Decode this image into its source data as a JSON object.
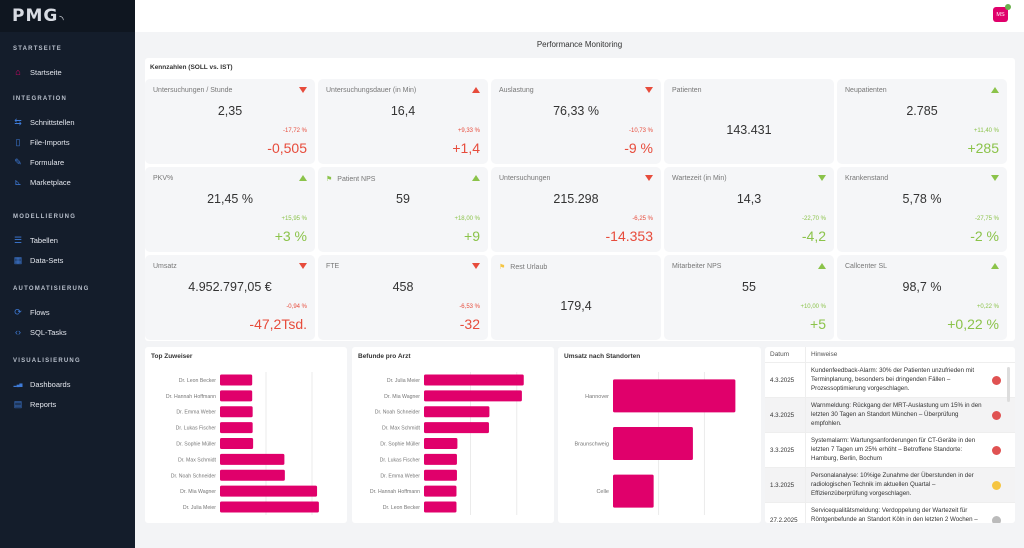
{
  "app": {
    "logo": "PMG"
  },
  "sidebar": {
    "sections": [
      {
        "heading": "STARTSEITE",
        "items": [
          {
            "label": "Startseite",
            "icon": "home-icon",
            "glyph": "⌂",
            "active": true
          }
        ]
      },
      {
        "heading": "INTEGRATION",
        "items": [
          {
            "label": "Schnittstellen",
            "icon": "interface-icon",
            "glyph": "⇆"
          },
          {
            "label": "File-Imports",
            "icon": "file-import-icon",
            "glyph": "▯"
          },
          {
            "label": "Formulare",
            "icon": "pencil-icon",
            "glyph": "✎"
          },
          {
            "label": "Marketplace",
            "icon": "cart-icon",
            "glyph": "⊾"
          }
        ]
      },
      {
        "heading": "MODELLIERUNG",
        "items": [
          {
            "label": "Tabellen",
            "icon": "table-icon",
            "glyph": "☰"
          },
          {
            "label": "Data-Sets",
            "icon": "dataset-icon",
            "glyph": "▦"
          }
        ]
      },
      {
        "heading": "AUTOMATISIERUNG",
        "items": [
          {
            "label": "Flows",
            "icon": "flow-icon",
            "glyph": "⟳"
          },
          {
            "label": "SQL-Tasks",
            "icon": "code-icon",
            "glyph": "‹›"
          }
        ]
      },
      {
        "heading": "VISUALISIERUNG",
        "items": [
          {
            "label": "Dashboards",
            "icon": "bar-chart-icon",
            "glyph": "▂▄▆"
          },
          {
            "label": "Reports",
            "icon": "report-icon",
            "glyph": "▤"
          }
        ]
      }
    ]
  },
  "header": {
    "user_initials": "MS",
    "online": true
  },
  "page": {
    "title": "Performance Monitoring"
  },
  "kpis": {
    "title": "Kennzahlen (SOLL vs. IST)",
    "colors": {
      "negative": "#e74c3c",
      "positive": "#8bc34a",
      "flag_green": "#8bc34a",
      "flag_yellow": "#f5c542"
    },
    "cards": [
      {
        "label": "Untersuchungen / Stunde",
        "value": "2,35",
        "pct": "-17,72 %",
        "delta": "+-0,505",
        "trend": "down",
        "status": "negative"
      },
      {
        "label": "Untersuchungsdauer (in Min)",
        "value": "16,4",
        "pct": "+9,33 %",
        "delta": "+1,4",
        "trend": "up",
        "status": "negative"
      },
      {
        "label": "Auslastung",
        "value": "76,33 %",
        "pct": "-10,73 %",
        "delta": "-9 %",
        "trend": "down",
        "status": "negative"
      },
      {
        "label": "Patienten",
        "value": "143.431",
        "pct": "",
        "delta": "",
        "trend": "",
        "status": ""
      },
      {
        "label": "Neupatienten",
        "value": "2.785",
        "pct": "+11,40 %",
        "delta": "+285",
        "trend": "up",
        "status": "positive"
      },
      {
        "label": "PKV%",
        "value": "21,45 %",
        "pct": "+15,95 %",
        "delta": "+3 %",
        "trend": "up",
        "status": "positive"
      },
      {
        "label": "Patient NPS",
        "value": "59",
        "pct": "+18,00 %",
        "delta": "+9",
        "trend": "up",
        "status": "positive",
        "flag": "green"
      },
      {
        "label": "Untersuchungen",
        "value": "215.298",
        "pct": "-6,25 %",
        "delta": "-14.353",
        "trend": "down",
        "status": "negative"
      },
      {
        "label": "Wartezeit (in Min)",
        "value": "14,3",
        "pct": "-22,70 %",
        "delta": "-4,2",
        "trend": "down",
        "status": "positive"
      },
      {
        "label": "Krankenstand",
        "value": "5,78 %",
        "pct": "-27,75 %",
        "delta": "-2 %",
        "trend": "down",
        "status": "positive"
      },
      {
        "label": "Umsatz",
        "value": "4.952.797,05 €",
        "pct": "-0,94 %",
        "delta": "-47,2Tsd.",
        "trend": "down",
        "status": "negative"
      },
      {
        "label": "FTE",
        "value": "458",
        "pct": "-6,53 %",
        "delta": "-32",
        "trend": "down",
        "status": "negative"
      },
      {
        "label": "Rest Urlaub",
        "value": "179,4",
        "pct": "",
        "delta": "",
        "trend": "",
        "status": "",
        "flag": "yellow"
      },
      {
        "label": "Mitarbeiter NPS",
        "value": "55",
        "pct": "+10,00 %",
        "delta": "+5",
        "trend": "up",
        "status": "positive"
      },
      {
        "label": "Callcenter SL",
        "value": "98,7 %",
        "pct": "+0,22 %",
        "delta": "+0,22 %",
        "trend": "up",
        "status": "positive"
      }
    ]
  },
  "chart_data": [
    {
      "type": "bar",
      "orientation": "horizontal",
      "title": "Top Zuweiser",
      "categories": [
        "Dr. Leon Becker",
        "Dr. Hannah Hoffmann",
        "Dr. Emma Weber",
        "Dr. Lukas Fischer",
        "Dr. Sophie Müller",
        "Dr. Max Schmidt",
        "Dr. Noah Schneider",
        "Dr. Mia Wagner",
        "Dr. Julia Meier"
      ],
      "values": [
        70,
        70,
        71,
        71,
        72,
        140,
        141,
        211,
        215
      ],
      "xlim": [
        0,
        250
      ],
      "grid": true,
      "color": "#e0006b"
    },
    {
      "type": "bar",
      "orientation": "horizontal",
      "title": "Befunde pro Arzt",
      "categories": [
        "Dr. Julia Meier",
        "Dr. Mia Wagner",
        "Dr. Noah Schneider",
        "Dr. Max Schmidt",
        "Dr. Sophie Müller",
        "Dr. Lukas Fischer",
        "Dr. Emma Weber",
        "Dr. Hannah Hoffmann",
        "Dr. Leon Becker"
      ],
      "values": [
        215,
        211,
        141,
        140,
        72,
        71,
        71,
        70,
        70
      ],
      "xlim": [
        0,
        250
      ],
      "grid": true,
      "color": "#e0006b"
    },
    {
      "type": "bar",
      "orientation": "horizontal",
      "title": "Umsatz nach Standorten",
      "categories": [
        "Hannover",
        "Braunschweig",
        "Celle"
      ],
      "values": [
        2680000,
        1750000,
        890000
      ],
      "xlim": [
        0,
        3000000
      ],
      "grid": true,
      "color": "#e0006b"
    }
  ],
  "notes": {
    "columns": [
      "Datum",
      "Hinweise"
    ],
    "rows": [
      {
        "date": "4.3.2025",
        "text": "Kundenfeedback-Alarm: 30% der Patienten unzufrieden mit Terminplanung, besonders bei dringenden Fällen – Prozessoptimierung vorgeschlagen.",
        "status_color": "#e05252"
      },
      {
        "date": "4.3.2025",
        "text": "Warnmeldung: Rückgang der MRT-Auslastung um 15% in den letzten 30 Tagen an Standort München – Überprüfung empfohlen.",
        "status_color": "#e05252"
      },
      {
        "date": "3.3.2025",
        "text": "Systemalarm: Wartungsanforderungen für CT-Geräte in den letzten 7 Tagen um 25% erhöht – Betroffene Standorte: Hamburg, Berlin, Bochum",
        "status_color": "#e05252"
      },
      {
        "date": "1.3.2025",
        "text": "Personalanalyse: 10%ige Zunahme der Überstunden in der radiologischen Technik im aktuellen Quartal – Effizienzüberprüfung vorgeschlagen.",
        "status_color": "#f5c542"
      },
      {
        "date": "27.2.2025",
        "text": "Servicequalitätsmeldung: Verdoppelung der Wartezeit für Röntgenbefunde an Standort Köln in den letzten 2 Wochen –",
        "status_color": "#bbbbbb"
      }
    ]
  }
}
